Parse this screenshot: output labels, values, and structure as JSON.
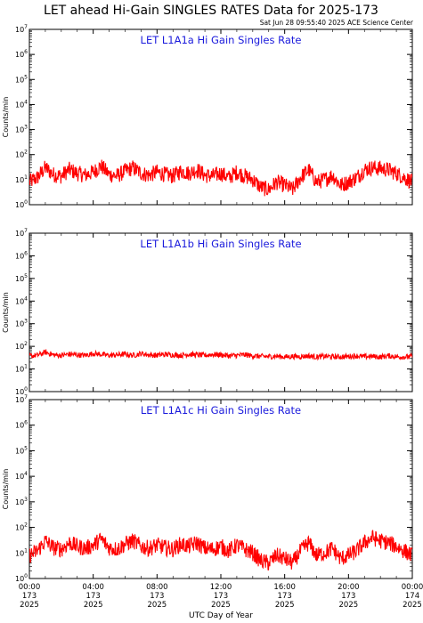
{
  "header": {
    "title": "LET ahead Hi-Gain SINGLES RATES Data for 2025-173",
    "timestamp": "Sat Jun 28 09:55:40 2025 ACE Science Center"
  },
  "x_axis": {
    "label": "UTC Day of Year",
    "ticks": [
      {
        "time": "00:00",
        "doy": "173",
        "year": "2025"
      },
      {
        "time": "04:00",
        "doy": "173",
        "year": "2025"
      },
      {
        "time": "08:00",
        "doy": "173",
        "year": "2025"
      },
      {
        "time": "12:00",
        "doy": "173",
        "year": "2025"
      },
      {
        "time": "16:00",
        "doy": "173",
        "year": "2025"
      },
      {
        "time": "20:00",
        "doy": "173",
        "year": "2025"
      },
      {
        "time": "00:00",
        "doy": "174",
        "year": "2025"
      }
    ]
  },
  "colors": {
    "series": "#ff0000",
    "panel_title": "#1a1adc",
    "axes": "#000000"
  },
  "chart_data": [
    {
      "type": "line",
      "title": "LET L1A1a Hi Gain Singles Rate",
      "ylabel": "Counts/min",
      "yscale": "log",
      "ylim": [
        1,
        10000000
      ],
      "ytick_labels": [
        "10^0",
        "10^1",
        "10^2",
        "10^3",
        "10^4",
        "10^5",
        "10^6",
        "10^7"
      ],
      "xlim_hours": [
        0,
        24
      ],
      "series": [
        {
          "x_hours": [
            0,
            0.5,
            1,
            1.5,
            2,
            2.5,
            3,
            3.5,
            4,
            4.5,
            5,
            5.5,
            6,
            6.5,
            7,
            7.5,
            8,
            8.5,
            9,
            9.5,
            10,
            10.5,
            11,
            11.5,
            12,
            12.5,
            13,
            13.5,
            14,
            14.5,
            15,
            15.5,
            16,
            16.5,
            17,
            17.5,
            18,
            18.5,
            19,
            19.5,
            20,
            20.5,
            21,
            21.5,
            22,
            22.5,
            23,
            23.5,
            24
          ],
          "values": [
            8,
            12,
            30,
            16,
            14,
            25,
            18,
            15,
            20,
            35,
            16,
            14,
            22,
            30,
            18,
            15,
            20,
            16,
            14,
            22,
            18,
            25,
            15,
            14,
            18,
            12,
            20,
            14,
            10,
            5,
            4,
            8,
            6,
            4,
            12,
            25,
            8,
            10,
            15,
            6,
            8,
            12,
            25,
            30,
            28,
            25,
            18,
            12,
            8
          ]
        }
      ]
    },
    {
      "type": "line",
      "title": "LET L1A1b Hi Gain Singles Rate",
      "ylabel": "Counts/min",
      "yscale": "log",
      "ylim": [
        1,
        10000000
      ],
      "ytick_labels": [
        "10^0",
        "10^1",
        "10^2",
        "10^3",
        "10^4",
        "10^5",
        "10^6",
        "10^7"
      ],
      "xlim_hours": [
        0,
        24
      ],
      "series": [
        {
          "x_hours": [
            0,
            0.5,
            1,
            1.5,
            2,
            2.5,
            3,
            3.5,
            4,
            4.5,
            5,
            5.5,
            6,
            6.5,
            7,
            7.5,
            8,
            8.5,
            9,
            9.5,
            10,
            10.5,
            11,
            11.5,
            12,
            12.5,
            13,
            13.5,
            14,
            14.5,
            15,
            15.5,
            16,
            16.5,
            17,
            17.5,
            18,
            18.5,
            19,
            19.5,
            20,
            20.5,
            21,
            21.5,
            22,
            22.5,
            23,
            23.5,
            24
          ],
          "values": [
            38,
            40,
            55,
            42,
            40,
            45,
            42,
            40,
            48,
            44,
            40,
            42,
            45,
            40,
            48,
            42,
            40,
            44,
            42,
            40,
            45,
            42,
            40,
            44,
            42,
            38,
            40,
            42,
            38,
            36,
            35,
            37,
            34,
            36,
            35,
            38,
            34,
            36,
            35,
            34,
            36,
            38,
            35,
            36,
            34,
            38,
            35,
            34,
            36
          ]
        }
      ]
    },
    {
      "type": "line",
      "title": "LET L1A1c Hi Gain Singles Rate",
      "ylabel": "Counts/min",
      "yscale": "log",
      "ylim": [
        1,
        10000000
      ],
      "ytick_labels": [
        "10^0",
        "10^1",
        "10^2",
        "10^3",
        "10^4",
        "10^5",
        "10^6",
        "10^7"
      ],
      "xlim_hours": [
        0,
        24
      ],
      "series": [
        {
          "x_hours": [
            0,
            0.5,
            1,
            1.5,
            2,
            2.5,
            3,
            3.5,
            4,
            4.5,
            5,
            5.5,
            6,
            6.5,
            7,
            7.5,
            8,
            8.5,
            9,
            9.5,
            10,
            10.5,
            11,
            11.5,
            12,
            12.5,
            13,
            13.5,
            14,
            14.5,
            15,
            15.5,
            16,
            16.5,
            17,
            17.5,
            18,
            18.5,
            19,
            19.5,
            20,
            20.5,
            21,
            21.5,
            22,
            22.5,
            23,
            23.5,
            24
          ],
          "values": [
            8,
            12,
            30,
            16,
            14,
            25,
            18,
            15,
            20,
            35,
            16,
            14,
            22,
            30,
            18,
            15,
            20,
            16,
            14,
            22,
            18,
            25,
            15,
            14,
            18,
            12,
            20,
            14,
            10,
            5,
            4,
            8,
            6,
            4,
            12,
            25,
            8,
            10,
            15,
            6,
            8,
            12,
            25,
            40,
            30,
            25,
            18,
            12,
            8
          ]
        }
      ]
    }
  ]
}
